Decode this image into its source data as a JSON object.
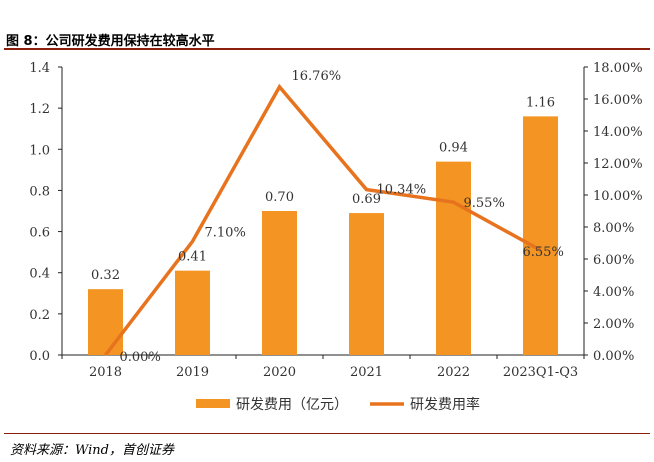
{
  "figure_title": "图 8：公司研发费用保持在较高水平",
  "source": "资料来源：Wind，首创证券",
  "colors": {
    "bar": "#F39423",
    "line": "#E8731E",
    "rule": "#8C1F0C"
  },
  "chart_data": {
    "type": "bar",
    "categories": [
      "2018",
      "2019",
      "2020",
      "2021",
      "2022",
      "2023Q1-Q3"
    ],
    "series": [
      {
        "name": "研发费用（亿元）",
        "type": "bar",
        "axis": "left",
        "values": [
          0.32,
          0.41,
          0.7,
          0.69,
          0.94,
          1.16
        ],
        "labels": [
          "0.32",
          "0.41",
          "0.70",
          "0.69",
          "0.94",
          "1.16"
        ]
      },
      {
        "name": "研发费用率",
        "type": "line",
        "axis": "right",
        "values": [
          0.0,
          7.1,
          16.76,
          10.34,
          9.55,
          6.55
        ],
        "labels": [
          "0.00%",
          "7.10%",
          "16.76%",
          "10.34%",
          "9.55%",
          "6.55%"
        ]
      }
    ],
    "y_left": {
      "min": 0,
      "max": 1.4,
      "ticks": [
        "0.0",
        "0.2",
        "0.4",
        "0.6",
        "0.8",
        "1.0",
        "1.2",
        "1.4"
      ]
    },
    "y_right": {
      "min": 0,
      "max": 18,
      "ticks": [
        "0.00%",
        "2.00%",
        "4.00%",
        "6.00%",
        "8.00%",
        "10.00%",
        "12.00%",
        "14.00%",
        "16.00%",
        "18.00%"
      ]
    },
    "grid": false,
    "legend_position": "bottom"
  }
}
